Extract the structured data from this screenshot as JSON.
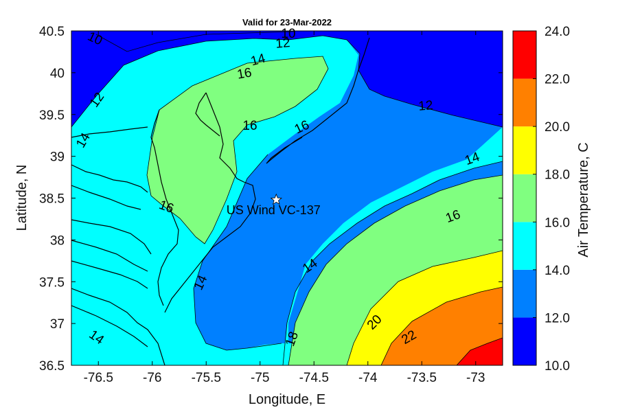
{
  "title": "Valid for 23-Mar-2022",
  "xlabel": "Longitude, E",
  "ylabel": "Latitude, N",
  "colorbar_label": "Air Temperature, C",
  "x_ticks": [
    "-76.5",
    "-76",
    "-75.5",
    "-75",
    "-74.5",
    "-74",
    "-73.5",
    "-73"
  ],
  "y_ticks": [
    "40.5",
    "40",
    "39.5",
    "39",
    "38.5",
    "38",
    "37.5",
    "37",
    "36.5"
  ],
  "colorbar_ticks": [
    "24.0",
    "22.0",
    "20.0",
    "18.0",
    "16.0",
    "14.0",
    "12.0",
    "10.0"
  ],
  "colorbar_colors": [
    "#ff0000",
    "#ff8000",
    "#ffff00",
    "#80ff80",
    "#00ffff",
    "#0080ff",
    "#0000ff"
  ],
  "contour_labels": [
    "10",
    "10",
    "12",
    "12",
    "12",
    "14",
    "14",
    "14",
    "14",
    "14",
    "14",
    "16",
    "16",
    "16",
    "16",
    "16",
    "18",
    "20",
    "22"
  ],
  "site": {
    "name": "US Wind VC-137",
    "lon": -74.85,
    "lat": 38.48
  },
  "chart_data": {
    "type": "heatmap",
    "variable": "Air Temperature",
    "units": "C",
    "xlim": [
      -76.75,
      -72.75
    ],
    "ylim": [
      36.5,
      40.5
    ],
    "color_levels": [
      10,
      12,
      14,
      16,
      18,
      20,
      22,
      24
    ],
    "contour_levels": [
      10,
      12,
      14,
      16,
      18,
      20,
      22
    ]
  }
}
